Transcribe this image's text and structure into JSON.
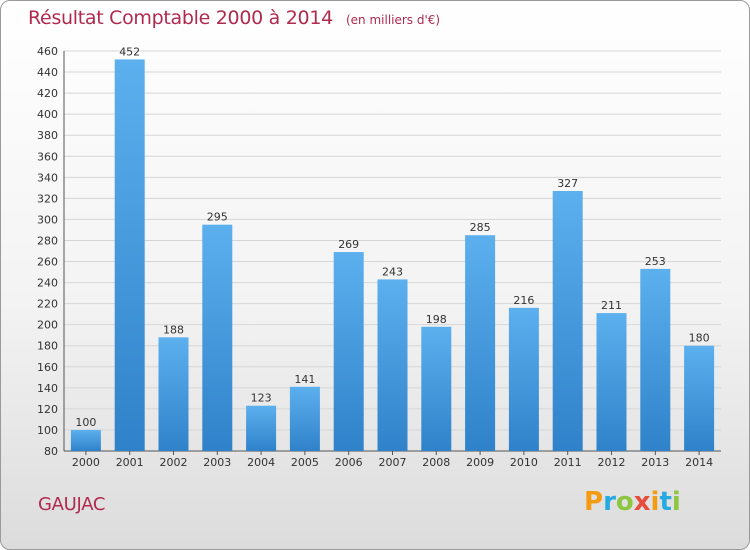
{
  "chart_data": {
    "type": "bar",
    "title": "Résultat Comptable 2000 à 2014",
    "subtitle": "(en milliers d'€)",
    "categories": [
      "2000",
      "2001",
      "2002",
      "2003",
      "2004",
      "2005",
      "2006",
      "2007",
      "2008",
      "2009",
      "2010",
      "2011",
      "2012",
      "2013",
      "2014"
    ],
    "values": [
      100,
      452,
      188,
      295,
      123,
      141,
      269,
      243,
      198,
      285,
      216,
      327,
      211,
      253,
      180
    ],
    "ylim": [
      80,
      460
    ],
    "yticks": [
      80,
      100,
      120,
      140,
      160,
      180,
      200,
      220,
      240,
      260,
      280,
      300,
      320,
      340,
      360,
      380,
      400,
      420,
      440,
      460
    ],
    "grid": true,
    "bar_color": "#4a9fe0",
    "label": "GAUJAC"
  },
  "logo": {
    "letters": [
      "P",
      "r",
      "o",
      "x",
      "i",
      "t",
      "i"
    ],
    "colors": [
      "#f39c12",
      "#27a9e1",
      "#8dc63f",
      "#e74c3c",
      "#f39c12",
      "#27a9e1",
      "#8dc63f"
    ]
  }
}
